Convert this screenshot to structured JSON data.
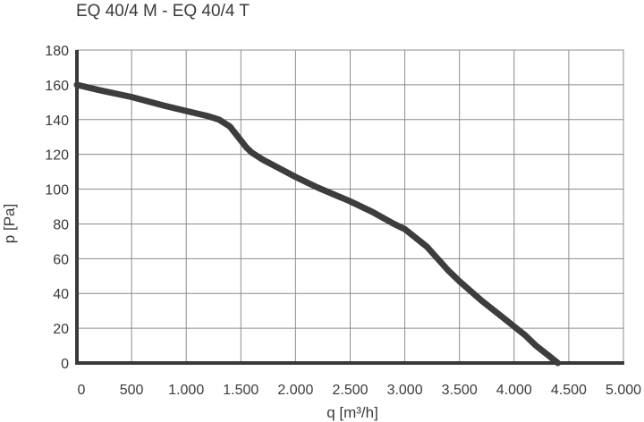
{
  "chart_data": {
    "type": "line",
    "title": "EQ 40/4 M - EQ 40/4 T",
    "xlabel": "q [m³/h]",
    "ylabel": "p [Pa]",
    "xlim": [
      0,
      5000
    ],
    "ylim": [
      0,
      180
    ],
    "grid": true,
    "x_ticks": [
      0,
      500,
      1000,
      1500,
      2000,
      2500,
      3000,
      3500,
      4000,
      4500,
      5000
    ],
    "x_tick_labels": [
      "0",
      "500",
      "1.000",
      "1.500",
      "2.000",
      "2.500",
      "3.000",
      "3.500",
      "4.000",
      "4.500",
      "5.000"
    ],
    "y_ticks": [
      0,
      20,
      40,
      60,
      80,
      100,
      120,
      140,
      160,
      180
    ],
    "y_tick_labels": [
      "0",
      "20",
      "40",
      "60",
      "80",
      "100",
      "120",
      "140",
      "160",
      "180"
    ],
    "colors": {
      "curve": "#3d3d3d",
      "grid": "#8c8c8c",
      "axis": "#3a3a3a",
      "text": "#3a3a3a"
    },
    "series": [
      {
        "x": [
          0,
          200,
          500,
          800,
          1000,
          1200,
          1300,
          1400,
          1500,
          1550,
          1600,
          1650,
          1700,
          1850,
          2000,
          2200,
          2500,
          2700,
          2900,
          3000,
          3100,
          3200,
          3300,
          3400,
          3500,
          3700,
          3900,
          4000,
          4100,
          4200,
          4300,
          4400
        ],
        "y": [
          160,
          157,
          153,
          148,
          145,
          142,
          140,
          136,
          128,
          124,
          121,
          119,
          117,
          112,
          107,
          101,
          93,
          87,
          80,
          77,
          72,
          67,
          60,
          53,
          47,
          36,
          26,
          21,
          16,
          10,
          5,
          0
        ]
      }
    ]
  }
}
